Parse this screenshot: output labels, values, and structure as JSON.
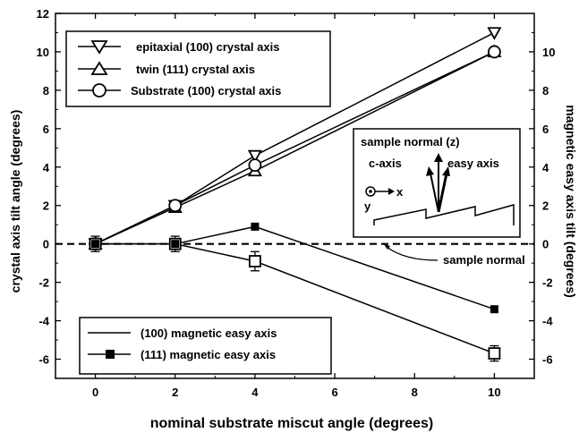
{
  "chart_data": {
    "type": "line",
    "xlabel": "nominal substrate miscut angle (degrees)",
    "ylabel": "crystal axis tilt angle (degrees)",
    "y2label": "magnetic easy axis tilt (degrees)",
    "xlim": [
      -1,
      11
    ],
    "ylim": [
      -7,
      12
    ],
    "y2lim": [
      -7,
      12
    ],
    "xticks": [
      0,
      2,
      4,
      6,
      8,
      10
    ],
    "yticks": [
      -6,
      -4,
      -2,
      0,
      2,
      4,
      6,
      8,
      10,
      12
    ],
    "y2ticks": [
      -6,
      -4,
      -2,
      0,
      2,
      4,
      6,
      8,
      10
    ],
    "x": [
      0,
      2,
      4,
      10
    ],
    "series": [
      {
        "name": "epitaxial (100) crystal axis",
        "marker": "triangle-down",
        "axis": "left",
        "values": [
          0,
          2.0,
          4.6,
          11.0
        ]
      },
      {
        "name": "twin (111) crystal axis",
        "marker": "triangle-up",
        "axis": "left",
        "values": [
          0,
          1.9,
          3.8,
          10.0
        ]
      },
      {
        "name": "Substrate (100) crystal axis",
        "marker": "circle",
        "axis": "left",
        "values": [
          0,
          2.0,
          4.1,
          10.0
        ]
      },
      {
        "name": "(100) magnetic easy axis",
        "marker": "open-square",
        "axis": "right",
        "values": [
          0,
          0,
          -0.9,
          -5.7
        ],
        "errors": [
          0.4,
          0.4,
          0.5,
          0.4
        ]
      },
      {
        "name": "(111) magnetic easy axis",
        "marker": "filled-square",
        "axis": "right",
        "values": [
          0,
          0,
          0.9,
          -3.4
        ]
      }
    ],
    "reference_line": {
      "y": 0,
      "style": "dashed",
      "label": "sample normal"
    },
    "legend_top": [
      "epitaxial (100) crystal axis",
      "twin (111) crystal axis",
      "Substrate (100) crystal axis"
    ],
    "legend_bottom": [
      "(100) magnetic easy axis",
      "(111) magnetic easy axis"
    ],
    "inset": {
      "title": "sample normal (z)",
      "left_label": "c-axis",
      "right_label": "easy axis",
      "x_label": "x",
      "y_label": "y"
    }
  }
}
